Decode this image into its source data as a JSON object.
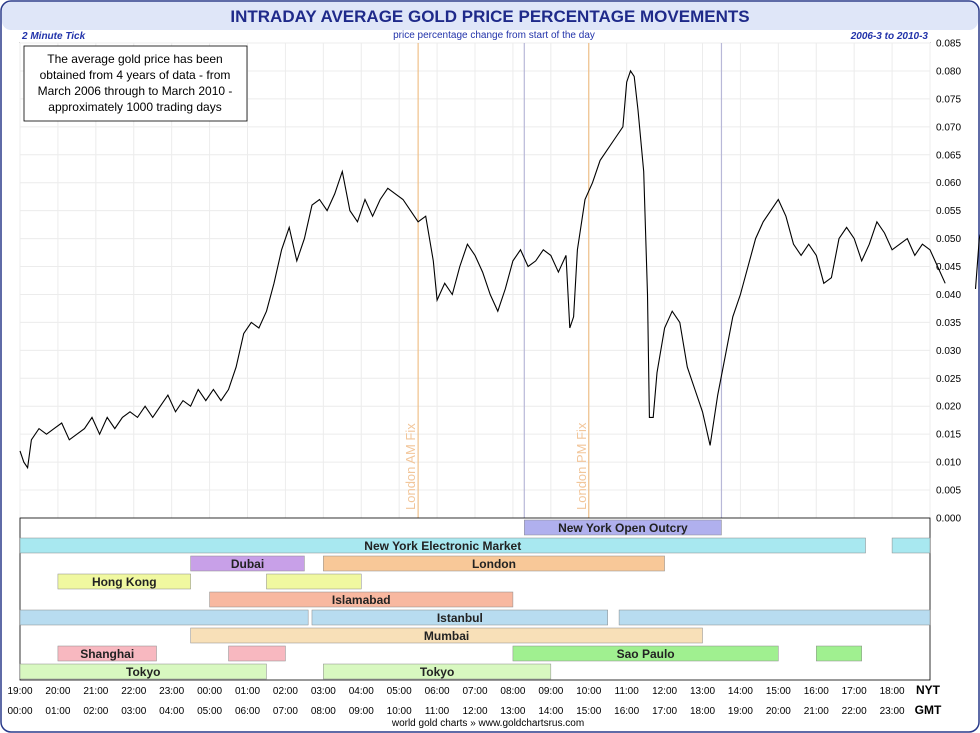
{
  "chart_data": {
    "type": "line",
    "title": "INTRADAY AVERAGE GOLD PRICE PERCENTAGE MOVEMENTS",
    "subtitle_left": "2 Minute Tick",
    "subtitle_center": "price percentage change from start of the day",
    "subtitle_right": "2006-3 to 2010-3",
    "note_lines": [
      "The average gold price has been",
      "obtained from 4 years of data - from",
      "March 2006 through to March 2010 -",
      "approximately 1000 trading days"
    ],
    "footer": "world gold charts » www.goldchartsrus.com",
    "ylim": [
      0.0,
      0.085
    ],
    "y_ticks": [
      "0.000",
      "0.005",
      "0.010",
      "0.015",
      "0.020",
      "0.025",
      "0.030",
      "0.035",
      "0.040",
      "0.045",
      "0.050",
      "0.055",
      "0.060",
      "0.065",
      "0.070",
      "0.075",
      "0.080",
      "0.085"
    ],
    "x_axis_label_top": "NYT",
    "x_axis_label_bottom": "GMT",
    "x_ticks_nyt": [
      "19:00",
      "20:00",
      "21:00",
      "22:00",
      "23:00",
      "00:00",
      "01:00",
      "02:00",
      "03:00",
      "04:00",
      "05:00",
      "06:00",
      "07:00",
      "08:00",
      "09:00",
      "10:00",
      "11:00",
      "12:00",
      "13:00",
      "14:00",
      "15:00",
      "16:00",
      "17:00",
      "18:00"
    ],
    "x_ticks_gmt": [
      "00:00",
      "01:00",
      "02:00",
      "03:00",
      "04:00",
      "05:00",
      "06:00",
      "07:00",
      "08:00",
      "09:00",
      "10:00",
      "11:00",
      "12:00",
      "13:00",
      "14:00",
      "15:00",
      "16:00",
      "17:00",
      "18:00",
      "19:00",
      "20:00",
      "21:00",
      "22:00",
      "23:00"
    ],
    "series": [
      {
        "segments": [
          [
            [
              0.0,
              0.012
            ],
            [
              0.1,
              0.01
            ],
            [
              0.2,
              0.009
            ],
            [
              0.3,
              0.014
            ],
            [
              0.5,
              0.016
            ],
            [
              0.7,
              0.015
            ],
            [
              0.9,
              0.016
            ],
            [
              1.1,
              0.017
            ],
            [
              1.3,
              0.014
            ],
            [
              1.5,
              0.015
            ],
            [
              1.7,
              0.016
            ],
            [
              1.9,
              0.018
            ],
            [
              2.1,
              0.015
            ],
            [
              2.3,
              0.018
            ],
            [
              2.5,
              0.016
            ],
            [
              2.7,
              0.018
            ],
            [
              2.9,
              0.019
            ],
            [
              3.1,
              0.018
            ],
            [
              3.3,
              0.02
            ],
            [
              3.5,
              0.018
            ],
            [
              3.7,
              0.02
            ],
            [
              3.9,
              0.022
            ],
            [
              4.1,
              0.019
            ],
            [
              4.3,
              0.021
            ],
            [
              4.5,
              0.02
            ],
            [
              4.7,
              0.023
            ],
            [
              4.9,
              0.021
            ],
            [
              5.1,
              0.023
            ],
            [
              5.3,
              0.021
            ],
            [
              5.5,
              0.023
            ],
            [
              5.7,
              0.027
            ],
            [
              5.9,
              0.033
            ],
            [
              6.1,
              0.035
            ],
            [
              6.3,
              0.034
            ],
            [
              6.5,
              0.037
            ],
            [
              6.7,
              0.042
            ],
            [
              6.9,
              0.048
            ],
            [
              7.1,
              0.052
            ],
            [
              7.3,
              0.046
            ],
            [
              7.5,
              0.05
            ],
            [
              7.7,
              0.056
            ],
            [
              7.9,
              0.057
            ],
            [
              8.1,
              0.055
            ],
            [
              8.3,
              0.058
            ],
            [
              8.5,
              0.062
            ],
            [
              8.7,
              0.055
            ],
            [
              8.9,
              0.053
            ],
            [
              9.1,
              0.057
            ],
            [
              9.3,
              0.054
            ],
            [
              9.5,
              0.057
            ],
            [
              9.7,
              0.059
            ],
            [
              9.9,
              0.058
            ],
            [
              10.1,
              0.057
            ],
            [
              10.3,
              0.055
            ],
            [
              10.5,
              0.053
            ],
            [
              10.7,
              0.054
            ],
            [
              10.9,
              0.046
            ],
            [
              11.0,
              0.039
            ],
            [
              11.2,
              0.042
            ],
            [
              11.4,
              0.04
            ],
            [
              11.6,
              0.045
            ],
            [
              11.8,
              0.049
            ],
            [
              12.0,
              0.047
            ],
            [
              12.2,
              0.044
            ],
            [
              12.4,
              0.04
            ],
            [
              12.6,
              0.037
            ],
            [
              12.8,
              0.041
            ],
            [
              13.0,
              0.046
            ],
            [
              13.2,
              0.048
            ],
            [
              13.4,
              0.045
            ],
            [
              13.6,
              0.046
            ],
            [
              13.8,
              0.048
            ],
            [
              14.0,
              0.047
            ],
            [
              14.2,
              0.044
            ],
            [
              14.4,
              0.047
            ],
            [
              14.5,
              0.034
            ],
            [
              14.6,
              0.036
            ],
            [
              14.7,
              0.048
            ],
            [
              14.9,
              0.057
            ],
            [
              15.1,
              0.06
            ],
            [
              15.3,
              0.064
            ],
            [
              15.5,
              0.066
            ],
            [
              15.7,
              0.068
            ],
            [
              15.9,
              0.07
            ],
            [
              16.0,
              0.078
            ],
            [
              16.1,
              0.08
            ],
            [
              16.2,
              0.079
            ],
            [
              16.3,
              0.073
            ],
            [
              16.45,
              0.062
            ],
            [
              16.55,
              0.04
            ],
            [
              16.6,
              0.018
            ],
            [
              16.7,
              0.018
            ],
            [
              16.8,
              0.026
            ],
            [
              17.0,
              0.034
            ],
            [
              17.2,
              0.037
            ],
            [
              17.4,
              0.035
            ],
            [
              17.6,
              0.027
            ],
            [
              17.8,
              0.023
            ],
            [
              18.0,
              0.019
            ],
            [
              18.2,
              0.013
            ],
            [
              18.4,
              0.022
            ],
            [
              18.6,
              0.029
            ],
            [
              18.8,
              0.036
            ],
            [
              19.0,
              0.04
            ],
            [
              19.2,
              0.045
            ],
            [
              19.4,
              0.05
            ],
            [
              19.6,
              0.053
            ],
            [
              19.8,
              0.055
            ],
            [
              20.0,
              0.057
            ],
            [
              20.2,
              0.054
            ],
            [
              20.4,
              0.049
            ],
            [
              20.6,
              0.047
            ],
            [
              20.8,
              0.049
            ],
            [
              21.0,
              0.047
            ],
            [
              21.2,
              0.042
            ],
            [
              21.4,
              0.043
            ],
            [
              21.6,
              0.05
            ],
            [
              21.8,
              0.052
            ],
            [
              22.0,
              0.05
            ],
            [
              22.2,
              0.046
            ],
            [
              22.4,
              0.049
            ],
            [
              22.6,
              0.053
            ],
            [
              22.8,
              0.051
            ],
            [
              23.0,
              0.048
            ],
            [
              23.2,
              0.049
            ],
            [
              23.4,
              0.05
            ],
            [
              23.6,
              0.047
            ],
            [
              23.8,
              0.049
            ],
            [
              24.0,
              0.048
            ],
            [
              24.2,
              0.045
            ],
            [
              24.4,
              0.042
            ]
          ],
          [
            [
              25.2,
              0.041
            ],
            [
              25.3,
              0.05
            ],
            [
              25.5,
              0.055
            ],
            [
              25.7,
              0.06
            ],
            [
              25.9,
              0.062
            ],
            [
              26.1,
              0.061
            ],
            [
              26.3,
              0.06
            ],
            [
              26.4,
              0.059
            ]
          ]
        ]
      }
    ],
    "x_hour_range": [
      0,
      24
    ],
    "vertical_markers": [
      {
        "label": "London AM Fix",
        "hour": 10.5,
        "color": "#f0c08a"
      },
      {
        "label": "London PM Fix",
        "hour": 15.0,
        "color": "#f0c08a"
      },
      {
        "label": "",
        "hour": 13.3,
        "color": "#b8b8d8"
      },
      {
        "label": "",
        "hour": 18.5,
        "color": "#b8b8d8"
      }
    ],
    "sessions": [
      {
        "label": "New York Open Outcry",
        "row": 0,
        "start": 13.3,
        "end": 18.5,
        "color": "#b0b0ee",
        "show_label": true
      },
      {
        "label": "New York Electronic Market",
        "row": 1,
        "start": 0.0,
        "end": 22.3,
        "color": "#a8e8f0",
        "show_label": true
      },
      {
        "label": "New York Electronic Market",
        "row": 1,
        "start": 23.0,
        "end": 24.0,
        "color": "#a8e8f0",
        "show_label": false
      },
      {
        "label": "Dubai",
        "row": 2,
        "start": 4.5,
        "end": 7.5,
        "color": "#c8a0e8",
        "show_label": true
      },
      {
        "label": "London",
        "row": 2,
        "start": 8.0,
        "end": 17.0,
        "color": "#f8c898",
        "show_label": true
      },
      {
        "label": "Hong Kong",
        "row": 3,
        "start": 1.0,
        "end": 4.5,
        "color": "#f0f8a0",
        "show_label": true
      },
      {
        "label": "Hong Kong",
        "row": 3,
        "start": 6.5,
        "end": 9.0,
        "color": "#f0f8a0",
        "show_label": false
      },
      {
        "label": "Islamabad",
        "row": 4,
        "start": 5.0,
        "end": 13.0,
        "color": "#f8b8a0",
        "show_label": true
      },
      {
        "label": "Istanbul",
        "row": 5,
        "start": 0.0,
        "end": 7.6,
        "color": "#b8dcf0",
        "show_label": false
      },
      {
        "label": "Istanbul",
        "row": 5,
        "start": 7.7,
        "end": 15.5,
        "color": "#b8dcf0",
        "show_label": true
      },
      {
        "label": "Istanbul",
        "row": 5,
        "start": 15.8,
        "end": 24.0,
        "color": "#b8dcf0",
        "show_label": false
      },
      {
        "label": "Mumbai",
        "row": 6,
        "start": 4.5,
        "end": 18.0,
        "color": "#f8e0b8",
        "show_label": true
      },
      {
        "label": "Shanghai",
        "row": 7,
        "start": 1.0,
        "end": 3.6,
        "color": "#f8b8c0",
        "show_label": true
      },
      {
        "label": "Shanghai",
        "row": 7,
        "start": 5.5,
        "end": 7.0,
        "color": "#f8b8c0",
        "show_label": false
      },
      {
        "label": "Sao Paulo",
        "row": 7,
        "start": 13.0,
        "end": 20.0,
        "color": "#a0f090",
        "show_label": true
      },
      {
        "label": "Sao Paulo",
        "row": 7,
        "start": 21.0,
        "end": 22.2,
        "color": "#a0f090",
        "show_label": false
      },
      {
        "label": "Tokyo",
        "row": 8,
        "start": 0.0,
        "end": 6.5,
        "color": "#d8f8c0",
        "show_label": true
      },
      {
        "label": "Tokyo",
        "row": 8,
        "start": 8.0,
        "end": 14.0,
        "color": "#d8f8c0",
        "show_label": true
      }
    ],
    "colors": {
      "title": "#1f2a8a",
      "line": "#000000",
      "grid": "#ececec",
      "border": "#2a3a8a"
    }
  }
}
